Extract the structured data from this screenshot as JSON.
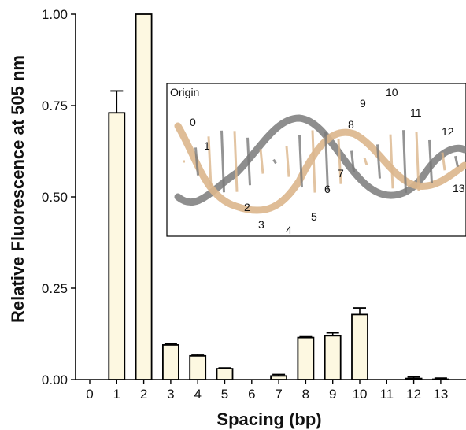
{
  "chart_data": {
    "type": "bar",
    "xlabel": "Spacing (bp)",
    "ylabel": "Relative Fluorescence at 505 nm",
    "ylim": [
      0,
      1.0
    ],
    "y_ticks": [
      "0.00",
      "0.25",
      "0.50",
      "0.75",
      "1.00"
    ],
    "y_tick_values": [
      0,
      0.25,
      0.5,
      0.75,
      1.0
    ],
    "categories": [
      "0",
      "1",
      "2",
      "3",
      "4",
      "5",
      "6",
      "7",
      "8",
      "9",
      "10",
      "11",
      "12",
      "13"
    ],
    "values": [
      0,
      0.73,
      1.0,
      0.095,
      0.065,
      0.03,
      0,
      0.01,
      0.115,
      0.12,
      0.178,
      0,
      0.003,
      0.001
    ],
    "errors": [
      0,
      0.06,
      0,
      0.004,
      0.004,
      0.002,
      0,
      0.004,
      0.002,
      0.008,
      0.018,
      0,
      0.004,
      0.003
    ],
    "bar_fill": "#fdf8e1",
    "bar_stroke": "#000000",
    "grid": false,
    "inset": {
      "label": "Origin",
      "positions": [
        "0",
        "1",
        "2",
        "3",
        "4",
        "5",
        "6",
        "7",
        "8",
        "9",
        "10",
        "11",
        "12",
        "13"
      ],
      "colors": {
        "highlight": "#dcb68c",
        "strand": "#7a7a7a"
      }
    }
  }
}
